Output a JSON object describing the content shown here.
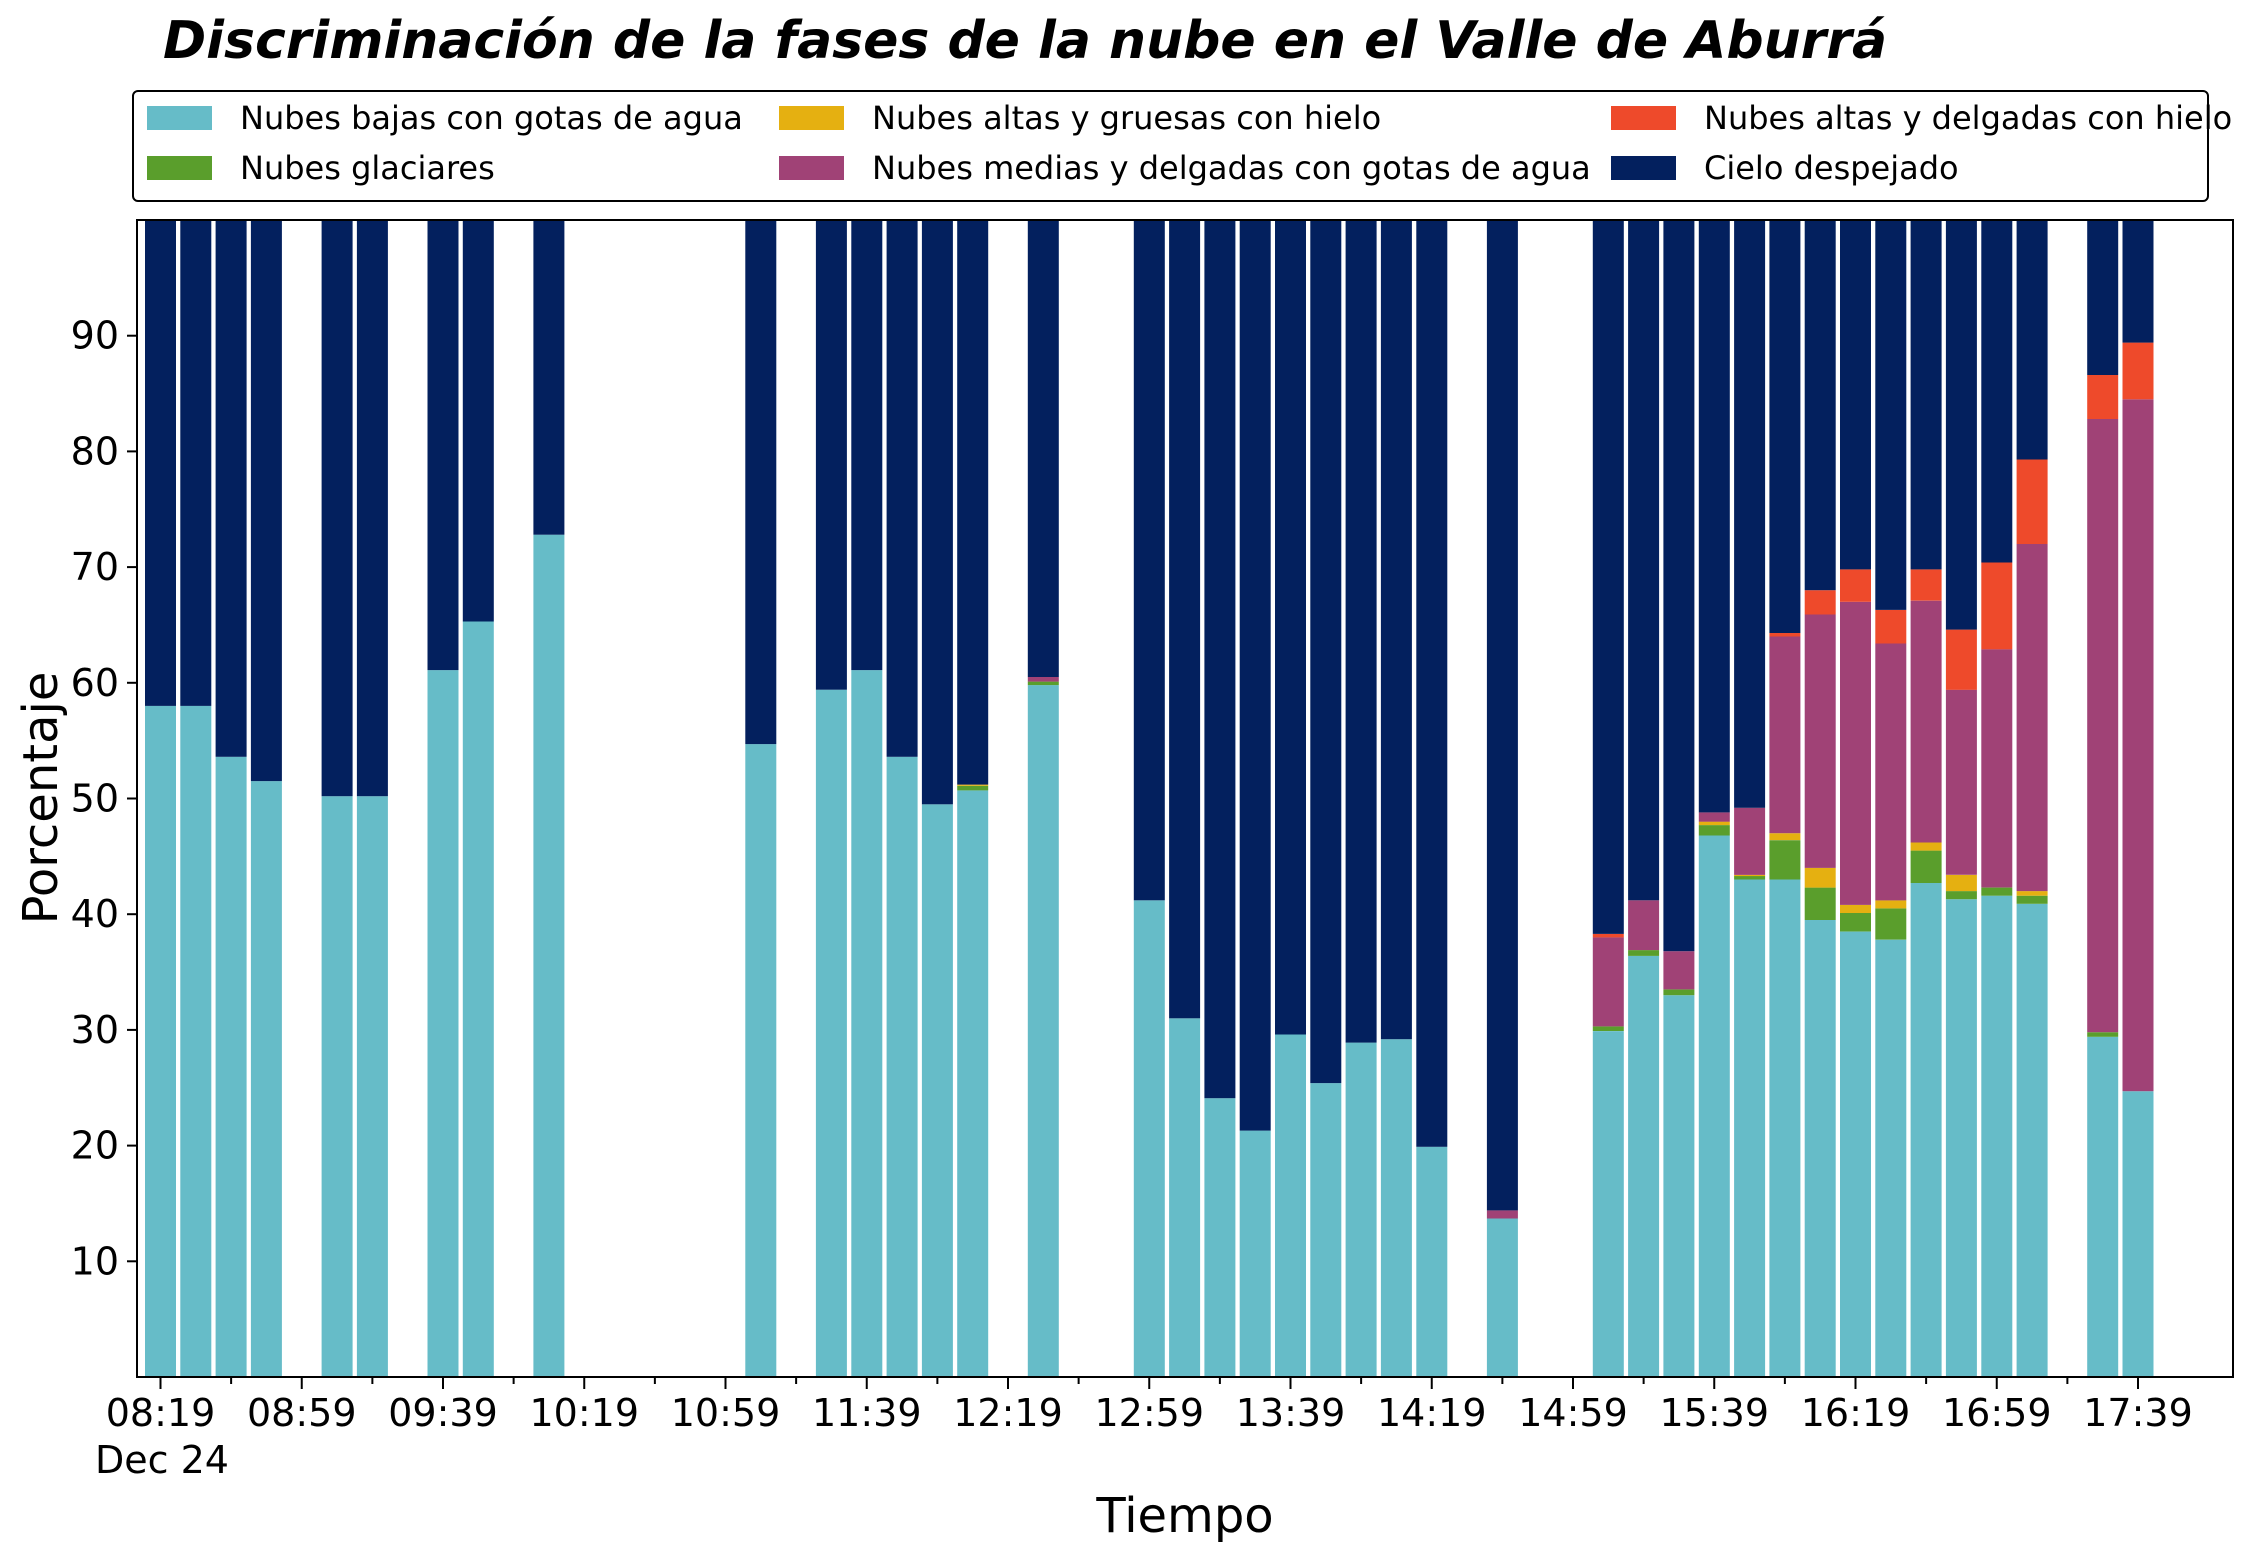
{
  "chart_data": {
    "type": "bar",
    "stacked": true,
    "title": "Discriminación de la fases de la nube en el Valle de Aburrá",
    "xlabel": "Tiempo",
    "ylabel": "Porcentaje",
    "date_label": "Dec 24",
    "ylim": [
      0,
      100
    ],
    "y_ticks": [
      10,
      20,
      30,
      40,
      50,
      60,
      70,
      80,
      90
    ],
    "x_tick_labels": [
      "08:19",
      "08:59",
      "09:39",
      "10:19",
      "10:59",
      "11:39",
      "12:19",
      "12:59",
      "13:39",
      "14:19",
      "14:59",
      "15:39",
      "16:19",
      "16:59",
      "17:39"
    ],
    "legend_position": "top",
    "colors": {
      "low_water": "#66bcc8",
      "glacial": "#5a9e2c",
      "high_thick_ice": "#e5b011",
      "mid_thin_water": "#a04276",
      "high_thin_ice": "#ee4a2b",
      "clear_sky": "#03205e"
    },
    "series": [
      {
        "key": "low_water",
        "name": "Nubes bajas con gotas de agua"
      },
      {
        "key": "glacial",
        "name": "Nubes glaciares"
      },
      {
        "key": "high_thick_ice",
        "name": "Nubes altas y gruesas con hielo"
      },
      {
        "key": "mid_thin_water",
        "name": "Nubes medias y delgadas con gotas de agua"
      },
      {
        "key": "high_thin_ice",
        "name": "Nubes altas y delgadas con hielo"
      },
      {
        "key": "clear_sky",
        "name": "Cielo despejado"
      }
    ],
    "stack_order": [
      "low_water",
      "glacial",
      "high_thick_ice",
      "mid_thin_water",
      "high_thin_ice",
      "clear_sky"
    ],
    "bars": [
      {
        "time": "08:19",
        "low_water": 58.0,
        "glacial": 0,
        "high_thick_ice": 0,
        "mid_thin_water": 0,
        "high_thin_ice": 0,
        "clear_sky": 42.0
      },
      {
        "time": "08:29",
        "low_water": 58.0,
        "glacial": 0,
        "high_thick_ice": 0,
        "mid_thin_water": 0,
        "high_thin_ice": 0,
        "clear_sky": 42.0
      },
      {
        "time": "08:39",
        "low_water": 53.6,
        "glacial": 0,
        "high_thick_ice": 0,
        "mid_thin_water": 0,
        "high_thin_ice": 0,
        "clear_sky": 46.4
      },
      {
        "time": "08:49",
        "low_water": 51.5,
        "glacial": 0,
        "high_thick_ice": 0,
        "mid_thin_water": 0,
        "high_thin_ice": 0,
        "clear_sky": 48.5
      },
      {
        "time": "09:09",
        "low_water": 50.2,
        "glacial": 0,
        "high_thick_ice": 0,
        "mid_thin_water": 0,
        "high_thin_ice": 0,
        "clear_sky": 49.8
      },
      {
        "time": "09:19",
        "low_water": 50.2,
        "glacial": 0,
        "high_thick_ice": 0,
        "mid_thin_water": 0,
        "high_thin_ice": 0,
        "clear_sky": 49.8
      },
      {
        "time": "09:39",
        "low_water": 61.1,
        "glacial": 0,
        "high_thick_ice": 0,
        "mid_thin_water": 0,
        "high_thin_ice": 0,
        "clear_sky": 38.9
      },
      {
        "time": "09:49",
        "low_water": 65.3,
        "glacial": 0,
        "high_thick_ice": 0,
        "mid_thin_water": 0,
        "high_thin_ice": 0,
        "clear_sky": 34.7
      },
      {
        "time": "10:09",
        "low_water": 72.8,
        "glacial": 0,
        "high_thick_ice": 0,
        "mid_thin_water": 0,
        "high_thin_ice": 0,
        "clear_sky": 27.2
      },
      {
        "time": "11:09",
        "low_water": 54.7,
        "glacial": 0,
        "high_thick_ice": 0,
        "mid_thin_water": 0,
        "high_thin_ice": 0,
        "clear_sky": 45.3
      },
      {
        "time": "11:29",
        "low_water": 59.4,
        "glacial": 0,
        "high_thick_ice": 0,
        "mid_thin_water": 0,
        "high_thin_ice": 0,
        "clear_sky": 40.6
      },
      {
        "time": "11:39",
        "low_water": 61.1,
        "glacial": 0,
        "high_thick_ice": 0,
        "mid_thin_water": 0,
        "high_thin_ice": 0,
        "clear_sky": 38.9
      },
      {
        "time": "11:49",
        "low_water": 53.6,
        "glacial": 0,
        "high_thick_ice": 0,
        "mid_thin_water": 0,
        "high_thin_ice": 0,
        "clear_sky": 46.4
      },
      {
        "time": "11:59",
        "low_water": 49.5,
        "glacial": 0,
        "high_thick_ice": 0,
        "mid_thin_water": 0,
        "high_thin_ice": 0,
        "clear_sky": 50.5
      },
      {
        "time": "12:09",
        "low_water": 50.7,
        "glacial": 0.4,
        "high_thick_ice": 0.1,
        "mid_thin_water": 0,
        "high_thin_ice": 0,
        "clear_sky": 48.8
      },
      {
        "time": "12:29",
        "low_water": 59.8,
        "glacial": 0.3,
        "high_thick_ice": 0,
        "mid_thin_water": 0.4,
        "high_thin_ice": 0,
        "clear_sky": 39.5
      },
      {
        "time": "12:59",
        "low_water": 41.2,
        "glacial": 0,
        "high_thick_ice": 0,
        "mid_thin_water": 0,
        "high_thin_ice": 0,
        "clear_sky": 58.8
      },
      {
        "time": "13:09",
        "low_water": 31.0,
        "glacial": 0,
        "high_thick_ice": 0,
        "mid_thin_water": 0,
        "high_thin_ice": 0,
        "clear_sky": 69.0
      },
      {
        "time": "13:19",
        "low_water": 24.1,
        "glacial": 0,
        "high_thick_ice": 0,
        "mid_thin_water": 0,
        "high_thin_ice": 0,
        "clear_sky": 75.9
      },
      {
        "time": "13:29",
        "low_water": 21.3,
        "glacial": 0,
        "high_thick_ice": 0,
        "mid_thin_water": 0,
        "high_thin_ice": 0,
        "clear_sky": 78.7
      },
      {
        "time": "13:39",
        "low_water": 29.6,
        "glacial": 0,
        "high_thick_ice": 0,
        "mid_thin_water": 0,
        "high_thin_ice": 0,
        "clear_sky": 70.4
      },
      {
        "time": "13:49",
        "low_water": 25.4,
        "glacial": 0,
        "high_thick_ice": 0,
        "mid_thin_water": 0,
        "high_thin_ice": 0,
        "clear_sky": 74.6
      },
      {
        "time": "13:59",
        "low_water": 28.9,
        "glacial": 0,
        "high_thick_ice": 0,
        "mid_thin_water": 0,
        "high_thin_ice": 0,
        "clear_sky": 71.1
      },
      {
        "time": "14:09",
        "low_water": 29.2,
        "glacial": 0,
        "high_thick_ice": 0,
        "mid_thin_water": 0,
        "high_thin_ice": 0,
        "clear_sky": 70.8
      },
      {
        "time": "14:19",
        "low_water": 19.9,
        "glacial": 0,
        "high_thick_ice": 0,
        "mid_thin_water": 0,
        "high_thin_ice": 0,
        "clear_sky": 80.1
      },
      {
        "time": "14:39",
        "low_water": 13.7,
        "glacial": 0,
        "high_thick_ice": 0,
        "mid_thin_water": 0.7,
        "high_thin_ice": 0,
        "clear_sky": 85.6
      },
      {
        "time": "15:09",
        "low_water": 29.9,
        "glacial": 0.4,
        "high_thick_ice": 0,
        "mid_thin_water": 7.7,
        "high_thin_ice": 0.3,
        "clear_sky": 61.7
      },
      {
        "time": "15:19",
        "low_water": 36.4,
        "glacial": 0.5,
        "high_thick_ice": 0,
        "mid_thin_water": 4.3,
        "high_thin_ice": 0,
        "clear_sky": 58.8
      },
      {
        "time": "15:29",
        "low_water": 33.0,
        "glacial": 0.5,
        "high_thick_ice": 0,
        "mid_thin_water": 3.3,
        "high_thin_ice": 0,
        "clear_sky": 63.2
      },
      {
        "time": "15:39",
        "low_water": 46.8,
        "glacial": 0.9,
        "high_thick_ice": 0.3,
        "mid_thin_water": 0.8,
        "high_thin_ice": 0,
        "clear_sky": 51.2
      },
      {
        "time": "15:49",
        "low_water": 43.0,
        "glacial": 0.3,
        "high_thick_ice": 0.1,
        "mid_thin_water": 5.8,
        "high_thin_ice": 0,
        "clear_sky": 50.8
      },
      {
        "time": "15:59",
        "low_water": 43.0,
        "glacial": 3.4,
        "high_thick_ice": 0.6,
        "mid_thin_water": 17.0,
        "high_thin_ice": 0.3,
        "clear_sky": 35.7
      },
      {
        "time": "16:09",
        "low_water": 39.5,
        "glacial": 2.8,
        "high_thick_ice": 1.7,
        "mid_thin_water": 21.9,
        "high_thin_ice": 2.1,
        "clear_sky": 32.0
      },
      {
        "time": "16:19",
        "low_water": 38.5,
        "glacial": 1.6,
        "high_thick_ice": 0.7,
        "mid_thin_water": 26.2,
        "high_thin_ice": 2.8,
        "clear_sky": 30.2
      },
      {
        "time": "16:29",
        "low_water": 37.8,
        "glacial": 2.7,
        "high_thick_ice": 0.7,
        "mid_thin_water": 22.2,
        "high_thin_ice": 2.9,
        "clear_sky": 33.7
      },
      {
        "time": "16:39",
        "low_water": 42.7,
        "glacial": 2.8,
        "high_thick_ice": 0.7,
        "mid_thin_water": 20.9,
        "high_thin_ice": 2.7,
        "clear_sky": 30.2
      },
      {
        "time": "16:49",
        "low_water": 41.3,
        "glacial": 0.7,
        "high_thick_ice": 1.4,
        "mid_thin_water": 16.0,
        "high_thin_ice": 5.2,
        "clear_sky": 35.4
      },
      {
        "time": "16:59",
        "low_water": 41.6,
        "glacial": 0.7,
        "high_thick_ice": 0,
        "mid_thin_water": 20.6,
        "high_thin_ice": 7.5,
        "clear_sky": 29.6
      },
      {
        "time": "17:09",
        "low_water": 40.9,
        "glacial": 0.7,
        "high_thick_ice": 0.4,
        "mid_thin_water": 30.0,
        "high_thin_ice": 7.3,
        "clear_sky": 20.7
      },
      {
        "time": "17:29",
        "low_water": 29.4,
        "glacial": 0.4,
        "high_thick_ice": 0,
        "mid_thin_water": 53.0,
        "high_thin_ice": 3.8,
        "clear_sky": 13.4
      },
      {
        "time": "17:39",
        "low_water": 24.7,
        "glacial": 0,
        "high_thick_ice": 0,
        "mid_thin_water": 59.8,
        "high_thin_ice": 4.9,
        "clear_sky": 10.6
      }
    ]
  }
}
